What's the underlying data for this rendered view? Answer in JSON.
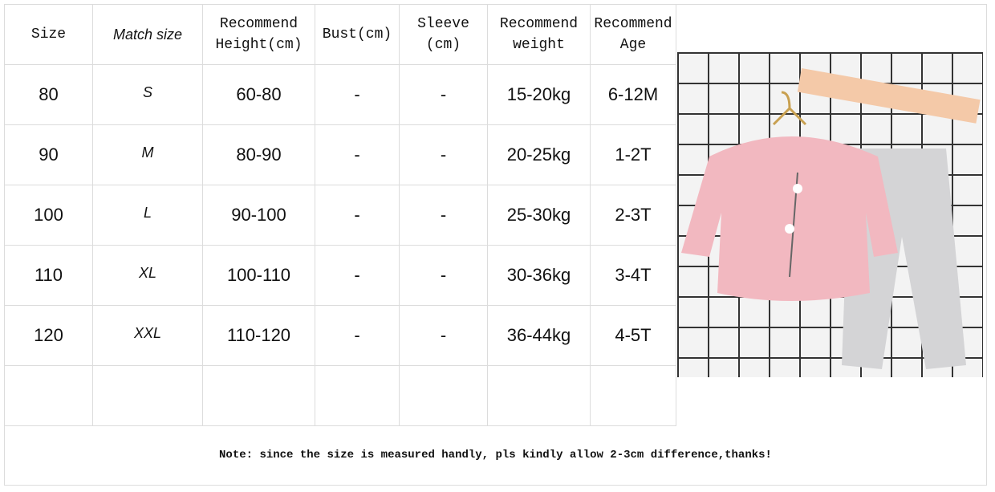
{
  "headers": [
    "Size",
    "Match size",
    "Recommend Height(cm)",
    "Bust(cm)",
    "Sleeve (cm)",
    "Recommend weight",
    "Recommend Age"
  ],
  "rows": [
    [
      "80",
      "S",
      "60-80",
      "-",
      "-",
      "15-20kg",
      "6-12M"
    ],
    [
      "90",
      "M",
      "80-90",
      "-",
      "-",
      "20-25kg",
      "1-2T"
    ],
    [
      "100",
      "L",
      "90-100",
      "-",
      "-",
      "25-30kg",
      "2-3T"
    ],
    [
      "110",
      "XL",
      "100-110",
      "-",
      "-",
      "30-36kg",
      "3-4T"
    ],
    [
      "120",
      "XXL",
      "110-120",
      "-",
      "-",
      "36-44kg",
      "4-5T"
    ]
  ],
  "note": "Note: since the size is measured handly, pls kindly allow 2-3cm difference,thanks!",
  "colors": {
    "sweater": "#f2b8c0",
    "pants": "#d4d4d6",
    "grid": "#333333"
  }
}
